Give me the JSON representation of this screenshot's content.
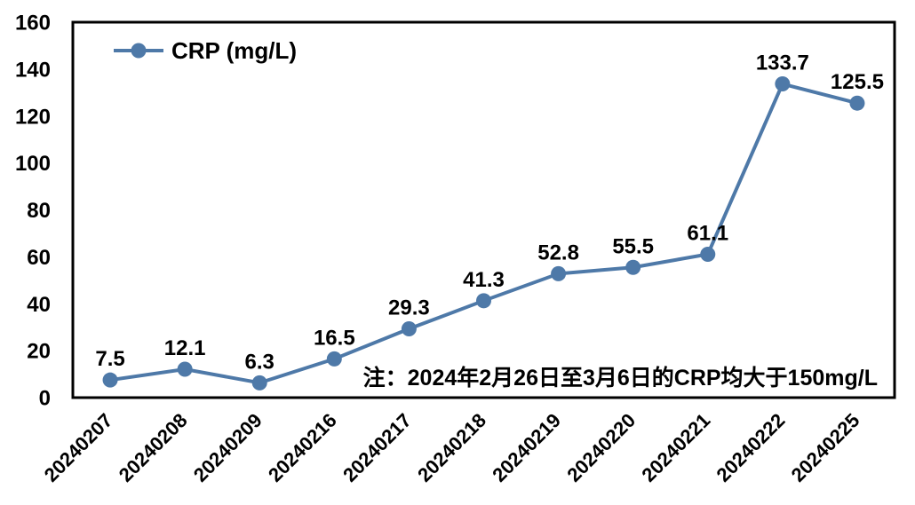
{
  "chart_data": {
    "type": "line",
    "title": "",
    "categories": [
      "20240207",
      "20240208",
      "20240209",
      "20240216",
      "20240217",
      "20240218",
      "20240219",
      "20240220",
      "20240221",
      "20240222",
      "20240225"
    ],
    "series": [
      {
        "name": "CRP (mg/L)",
        "values": [
          7.5,
          12.1,
          6.3,
          16.5,
          29.3,
          41.3,
          52.8,
          55.5,
          61.1,
          133.7,
          125.5
        ],
        "color": "#4E79A8"
      }
    ],
    "xlabel": "",
    "ylabel": "",
    "ylim": [
      0,
      160
    ],
    "yticks": [
      0,
      20,
      40,
      60,
      80,
      100,
      120,
      140,
      160
    ],
    "grid": false,
    "legend_position": "top-left",
    "data_labels_shown": true,
    "annotation": "注：2024年2月26日至3月6日的CRP均大于150mg/L",
    "frame_color": "#000000",
    "text_color": "#000000",
    "background_color": "#FFFFFF"
  }
}
